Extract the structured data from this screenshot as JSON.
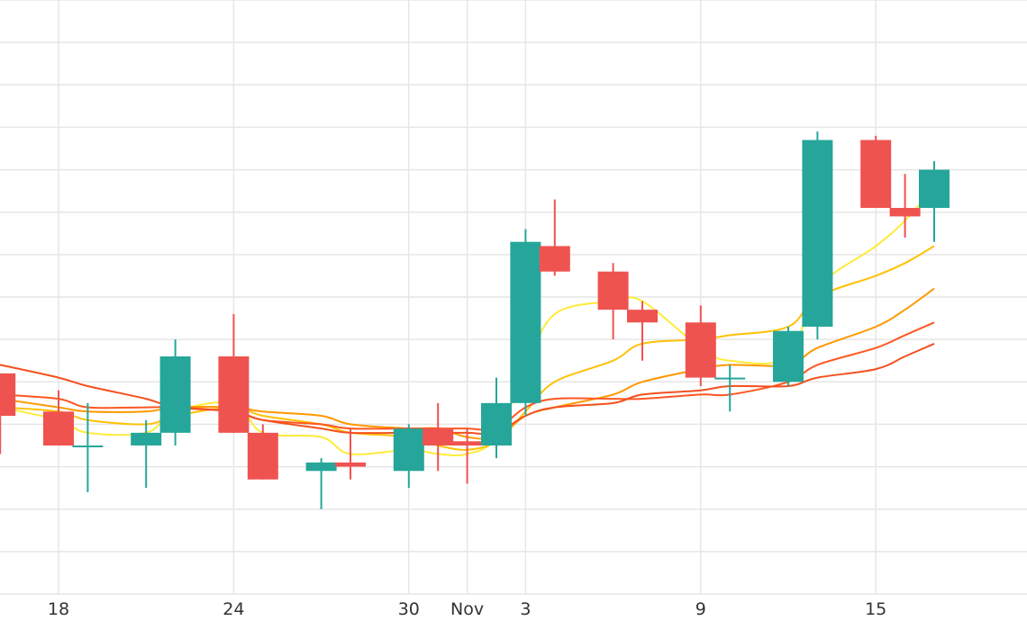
{
  "chart_data": {
    "type": "candlestick",
    "x_tick_labels": [
      {
        "label": "18",
        "date": "Oct 18"
      },
      {
        "label": "24",
        "date": "Oct 24"
      },
      {
        "label": "30",
        "date": "Oct 30"
      },
      {
        "label": "Nov",
        "date": "Nov 1"
      },
      {
        "label": "3",
        "date": "Nov 3"
      },
      {
        "label": "9",
        "date": "Nov 9"
      },
      {
        "label": "15",
        "date": "Nov 15"
      }
    ],
    "y_range": [
      0,
      14
    ],
    "grid": true,
    "colors": {
      "up": "#26a69a",
      "down": "#ef5350",
      "ma": [
        "#ffeb3b",
        "#ffc107",
        "#ff9800",
        "#ff5722",
        "#f4511e"
      ],
      "grid": "#e6e6e6",
      "text": "#333333"
    },
    "candles": [
      {
        "date": "Oct 16",
        "open": 5.2,
        "high": 5.2,
        "low": 3.3,
        "close": 4.2
      },
      {
        "date": "Oct 18",
        "open": 4.3,
        "high": 4.8,
        "low": 3.5,
        "close": 3.5
      },
      {
        "date": "Oct 19",
        "open": 3.5,
        "high": 4.5,
        "low": 2.4,
        "close": 3.5
      },
      {
        "date": "Oct 21",
        "open": 3.5,
        "high": 4.1,
        "low": 2.5,
        "close": 3.8
      },
      {
        "date": "Oct 22",
        "open": 3.8,
        "high": 6.0,
        "low": 3.5,
        "close": 5.6
      },
      {
        "date": "Oct 24",
        "open": 5.6,
        "high": 6.6,
        "low": 3.8,
        "close": 3.8
      },
      {
        "date": "Oct 25",
        "open": 3.8,
        "high": 4.0,
        "low": 2.7,
        "close": 2.7
      },
      {
        "date": "Oct 27",
        "open": 2.9,
        "high": 3.2,
        "low": 2.0,
        "close": 3.1
      },
      {
        "date": "Oct 28",
        "open": 3.1,
        "high": 3.9,
        "low": 2.7,
        "close": 3.0
      },
      {
        "date": "Oct 30",
        "open": 2.9,
        "high": 4.0,
        "low": 2.5,
        "close": 3.9
      },
      {
        "date": "Oct 31",
        "open": 3.9,
        "high": 4.5,
        "low": 2.9,
        "close": 3.5
      },
      {
        "date": "Nov 1",
        "open": 3.6,
        "high": 3.9,
        "low": 2.6,
        "close": 3.5
      },
      {
        "date": "Nov 2",
        "open": 3.5,
        "high": 5.1,
        "low": 3.2,
        "close": 4.5
      },
      {
        "date": "Nov 3",
        "open": 4.5,
        "high": 8.6,
        "low": 4.2,
        "close": 8.3
      },
      {
        "date": "Nov 4",
        "open": 8.2,
        "high": 9.3,
        "low": 7.5,
        "close": 7.6
      },
      {
        "date": "Nov 6",
        "open": 7.6,
        "high": 7.8,
        "low": 6.0,
        "close": 6.7
      },
      {
        "date": "Nov 7",
        "open": 6.7,
        "high": 6.9,
        "low": 5.5,
        "close": 6.4
      },
      {
        "date": "Nov 9",
        "open": 6.4,
        "high": 6.8,
        "low": 4.9,
        "close": 5.1
      },
      {
        "date": "Nov 10",
        "open": 5.1,
        "high": 5.4,
        "low": 4.3,
        "close": 5.1
      },
      {
        "date": "Nov 12",
        "open": 5.0,
        "high": 6.3,
        "low": 4.9,
        "close": 6.2
      },
      {
        "date": "Nov 13",
        "open": 6.3,
        "high": 10.9,
        "low": 6.0,
        "close": 10.7
      },
      {
        "date": "Nov 15",
        "open": 10.7,
        "high": 10.8,
        "low": 9.1,
        "close": 9.1
      },
      {
        "date": "Nov 16",
        "open": 9.1,
        "high": 9.9,
        "low": 8.4,
        "close": 8.9
      },
      {
        "date": "Nov 17",
        "open": 9.1,
        "high": 10.2,
        "low": 8.3,
        "close": 10.0
      }
    ],
    "moving_averages": [
      {
        "values": [
          4.4,
          4.1,
          3.8,
          3.8,
          4.3,
          4.5,
          3.8,
          3.7,
          3.3,
          3.4,
          3.3,
          3.3,
          3.7,
          5.3,
          6.6,
          6.9,
          6.9,
          5.8,
          5.5,
          5.6,
          7.2,
          8.2,
          8.8,
          9.6
        ]
      },
      {
        "values": [
          4.4,
          4.3,
          4.1,
          4.0,
          4.2,
          4.4,
          4.2,
          4.0,
          3.8,
          3.7,
          3.5,
          3.4,
          3.6,
          4.3,
          5.0,
          5.5,
          5.9,
          6.0,
          6.1,
          6.3,
          7.0,
          7.5,
          7.8,
          8.2
        ]
      },
      {
        "values": [
          4.6,
          4.4,
          4.3,
          4.3,
          4.4,
          4.4,
          4.3,
          4.2,
          4.0,
          3.9,
          3.9,
          3.7,
          3.7,
          4.2,
          4.4,
          4.7,
          5.0,
          5.3,
          5.4,
          5.4,
          5.8,
          6.3,
          6.7,
          7.2
        ]
      },
      {
        "values": [
          4.7,
          4.6,
          4.4,
          4.4,
          4.4,
          4.3,
          4.1,
          4.0,
          3.9,
          3.9,
          3.9,
          3.9,
          3.9,
          4.4,
          4.6,
          4.6,
          4.6,
          4.7,
          4.7,
          5.0,
          5.4,
          5.8,
          6.1,
          6.4
        ]
      },
      {
        "values": [
          5.4,
          5.1,
          4.9,
          4.6,
          4.4,
          4.3,
          4.1,
          3.9,
          3.8,
          3.8,
          3.8,
          3.8,
          3.8,
          4.2,
          4.4,
          4.5,
          4.7,
          4.8,
          4.9,
          4.9,
          5.1,
          5.3,
          5.6,
          5.9
        ]
      }
    ]
  }
}
